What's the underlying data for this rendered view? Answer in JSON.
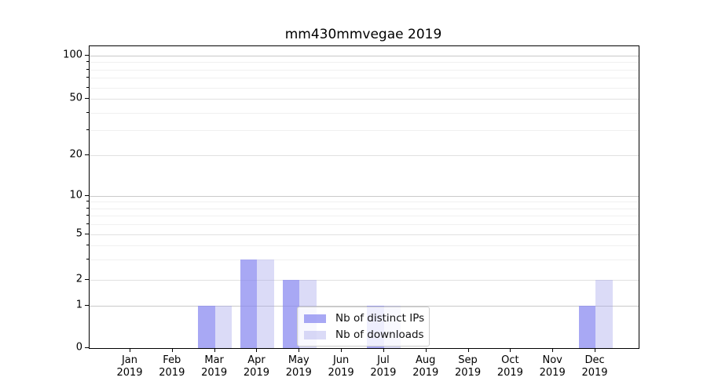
{
  "chart_data": {
    "type": "bar",
    "title": "mm430mmvegae 2019",
    "categories": [
      "Jan",
      "Feb",
      "Mar",
      "Apr",
      "May",
      "Jun",
      "Jul",
      "Aug",
      "Sep",
      "Oct",
      "Nov",
      "Dec"
    ],
    "category_year": "2019",
    "series": [
      {
        "name": "Nb of distinct IPs",
        "color": "#8787f0",
        "alpha": 0.72,
        "values": [
          0,
          0,
          1,
          3,
          2,
          0,
          1,
          0,
          0,
          0,
          0,
          1
        ]
      },
      {
        "name": "Nb of downloads",
        "color": "#a0a0eb",
        "alpha": 0.38,
        "values": [
          0,
          0,
          1,
          3,
          2,
          0,
          1,
          0,
          0,
          0,
          0,
          2
        ]
      }
    ],
    "xlabel": "",
    "ylabel": "",
    "yscale": "symlog",
    "ylim": [
      0,
      117
    ],
    "ytick_values": [
      0,
      1,
      2,
      5,
      10,
      20,
      50,
      100
    ],
    "ytick_labels": [
      "0",
      "1",
      "2",
      "5",
      "10",
      "20",
      "50",
      "100"
    ],
    "minor_tick_values": [
      3,
      4,
      6,
      7,
      8,
      9,
      30,
      40,
      60,
      70,
      80,
      90
    ],
    "grid": "both",
    "legend_position": "lower center"
  },
  "colors": {
    "major_grid": "#c9c9c9",
    "mid_grid": "#e1e1e1",
    "minor_grid": "#f0f0f0",
    "spine": "#000000",
    "legend_border": "#cccccc",
    "bar_dark_rendered": "#a9a9f5",
    "bar_light_rendered": "#dadaf8"
  }
}
